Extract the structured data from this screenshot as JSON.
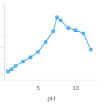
{
  "chart_data": {
    "type": "line",
    "x": [
      1,
      1.5,
      2,
      3,
      4,
      5,
      6,
      7,
      7.5,
      8,
      9,
      10,
      11,
      12
    ],
    "values": [
      28,
      30,
      33,
      37,
      41,
      46,
      55,
      65,
      78,
      75,
      68,
      66,
      63,
      48
    ],
    "xlabel": "pH",
    "xlim": [
      0.5,
      13
    ],
    "ylim": [
      20,
      90
    ],
    "xticks": [
      5,
      10
    ],
    "yticks": [
      20,
      30,
      40,
      50,
      60,
      70,
      80
    ],
    "grid": false,
    "tick_labels": "x",
    "marker": "square"
  }
}
